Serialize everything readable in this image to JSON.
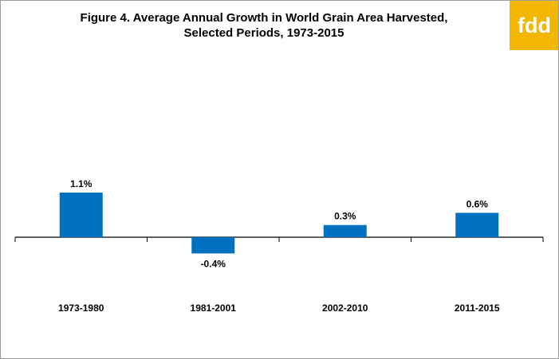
{
  "chart_data": {
    "type": "bar",
    "title_line1": "Figure 4. Average Annual Growth in World Grain Area Harvested,",
    "title_line2": "Selected Periods, 1973-2015",
    "categories": [
      "1973-1980",
      "1981-2001",
      "2002-2010",
      "2011-2015"
    ],
    "values": [
      1.1,
      -0.4,
      0.3,
      0.6
    ],
    "data_labels": [
      "1.1%",
      "-0.4%",
      "0.3%",
      "0.6%"
    ],
    "unit": "%",
    "ylim": [
      -1.5,
      3.0
    ],
    "grid": false,
    "legend": "none",
    "bar_color": "#0070c0",
    "axis_color": "#000000"
  },
  "logo": {
    "text": "fdd",
    "color": "#f2b705"
  }
}
